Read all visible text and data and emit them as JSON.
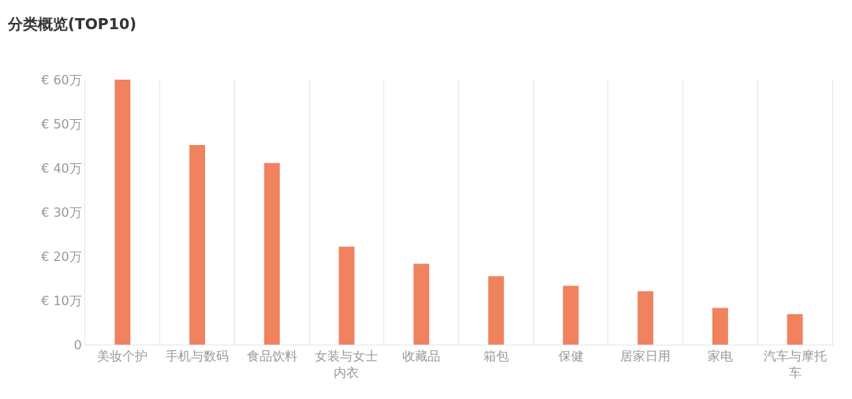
{
  "chart_data": {
    "type": "bar",
    "title": "分类概览(TOP10)",
    "categories": [
      "美妆个护",
      "手机与数码",
      "食品饮料",
      "女装与女士内衣",
      "收藏品",
      "箱包",
      "保健",
      "居家日用",
      "家电",
      "汽车与摩托车"
    ],
    "values": [
      60,
      45.2,
      41.1,
      22.2,
      18.3,
      15.5,
      13.3,
      12.1,
      8.3,
      6.9
    ],
    "color": "#f0825e",
    "ylim": [
      0,
      60
    ],
    "yticks": [
      0,
      {
        "value": 10,
        "label": "€ 10万"
      },
      {
        "value": 20,
        "label": "€ 20万"
      },
      {
        "value": 30,
        "label": "€ 30万"
      },
      {
        "value": 40,
        "label": "€ 40万"
      },
      {
        "value": 50,
        "label": "€ 50万"
      },
      {
        "value": 60,
        "label": "€ 60万"
      }
    ],
    "grid": "x"
  }
}
